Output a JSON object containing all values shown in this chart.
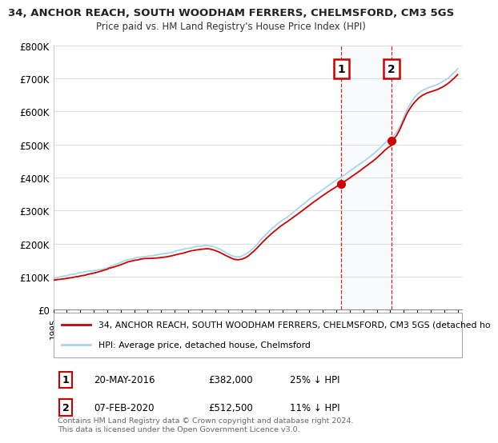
{
  "title": "34, ANCHOR REACH, SOUTH WOODHAM FERRERS, CHELMSFORD, CM3 5GS",
  "subtitle": "Price paid vs. HM Land Registry's House Price Index (HPI)",
  "ylabel_ticks": [
    "£0",
    "£100K",
    "£200K",
    "£300K",
    "£400K",
    "£500K",
    "£600K",
    "£700K",
    "£800K"
  ],
  "ytick_values": [
    0,
    100000,
    200000,
    300000,
    400000,
    500000,
    600000,
    700000,
    800000
  ],
  "ylim": [
    0,
    800000
  ],
  "hpi_color": "#a8d4e8",
  "price_color": "#cc0000",
  "dashed_line_color": "#cc0000",
  "shade_color": "#d6eaf8",
  "transaction1_year": 2016.38,
  "transaction2_year": 2020.09,
  "transaction1_price": 382000,
  "transaction2_price": 512500,
  "transaction1_date": "20-MAY-2016",
  "transaction2_date": "07-FEB-2020",
  "transaction1_pct": "25% ↓ HPI",
  "transaction2_pct": "11% ↓ HPI",
  "legend_property": "34, ANCHOR REACH, SOUTH WOODHAM FERRERS, CHELMSFORD, CM3 5GS (detached ho",
  "legend_hpi": "HPI: Average price, detached house, Chelmsford",
  "footer": "Contains HM Land Registry data © Crown copyright and database right 2024.\nThis data is licensed under the Open Government Licence v3.0.",
  "background_color": "#ffffff",
  "grid_color": "#dddddd"
}
